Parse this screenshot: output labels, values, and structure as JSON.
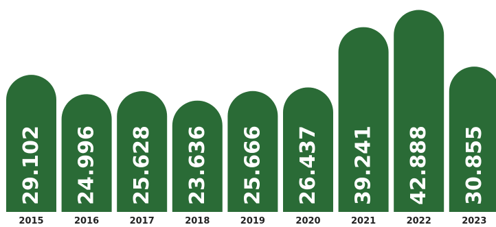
{
  "chart_data": {
    "type": "bar",
    "title": "",
    "xlabel": "",
    "ylabel": "",
    "categories": [
      "2015",
      "2016",
      "2017",
      "2018",
      "2019",
      "2020",
      "2021",
      "2022",
      "2023"
    ],
    "values": [
      29.102,
      24.996,
      25.628,
      23.636,
      25.666,
      26.437,
      39.241,
      42.888,
      30.855
    ],
    "value_labels": [
      "29.102",
      "24.996",
      "25.628",
      "23.636",
      "25.666",
      "26.437",
      "39.241",
      "42.888",
      "30.855"
    ],
    "bar_color": "#2a6b36",
    "grid": false,
    "legend": "none",
    "ylim": [
      0,
      45
    ]
  }
}
